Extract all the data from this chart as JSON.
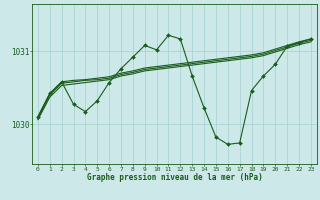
{
  "bg_color": "#cce8e8",
  "grid_color": "#aad4d4",
  "line_color": "#1a5c1a",
  "marker_color": "#1a5c1a",
  "xlabel": "Graphe pression niveau de la mer (hPa)",
  "yticks": [
    1030,
    1031
  ],
  "ylim_min": 1029.45,
  "ylim_max": 1031.65,
  "main": [
    1030.1,
    1030.42,
    1030.58,
    1030.27,
    1030.17,
    1030.32,
    1030.57,
    1030.76,
    1030.92,
    1031.08,
    1031.02,
    1031.22,
    1031.17,
    1030.66,
    1030.22,
    1029.82,
    1029.72,
    1029.74,
    1030.46,
    1030.66,
    1030.82,
    1031.07,
    1031.12,
    1031.17
  ],
  "smooth1": [
    1030.1,
    1030.42,
    1030.58,
    1030.6,
    1030.61,
    1030.63,
    1030.65,
    1030.7,
    1030.73,
    1030.77,
    1030.79,
    1030.81,
    1030.83,
    1030.85,
    1030.87,
    1030.89,
    1030.91,
    1030.93,
    1030.95,
    1030.98,
    1031.03,
    1031.08,
    1031.13,
    1031.17
  ],
  "smooth2": [
    1030.08,
    1030.4,
    1030.56,
    1030.58,
    1030.6,
    1030.61,
    1030.63,
    1030.68,
    1030.71,
    1030.75,
    1030.77,
    1030.79,
    1030.81,
    1030.83,
    1030.85,
    1030.87,
    1030.89,
    1030.91,
    1030.93,
    1030.96,
    1031.01,
    1031.06,
    1031.11,
    1031.15
  ],
  "smooth3": [
    1030.06,
    1030.37,
    1030.53,
    1030.55,
    1030.57,
    1030.59,
    1030.61,
    1030.66,
    1030.69,
    1030.73,
    1030.75,
    1030.77,
    1030.79,
    1030.81,
    1030.83,
    1030.85,
    1030.87,
    1030.89,
    1030.91,
    1030.94,
    1030.99,
    1031.04,
    1031.09,
    1031.13
  ],
  "xlabel_fontsize": 5.5,
  "ytick_fontsize": 5.5,
  "xtick_fontsize": 4.5
}
